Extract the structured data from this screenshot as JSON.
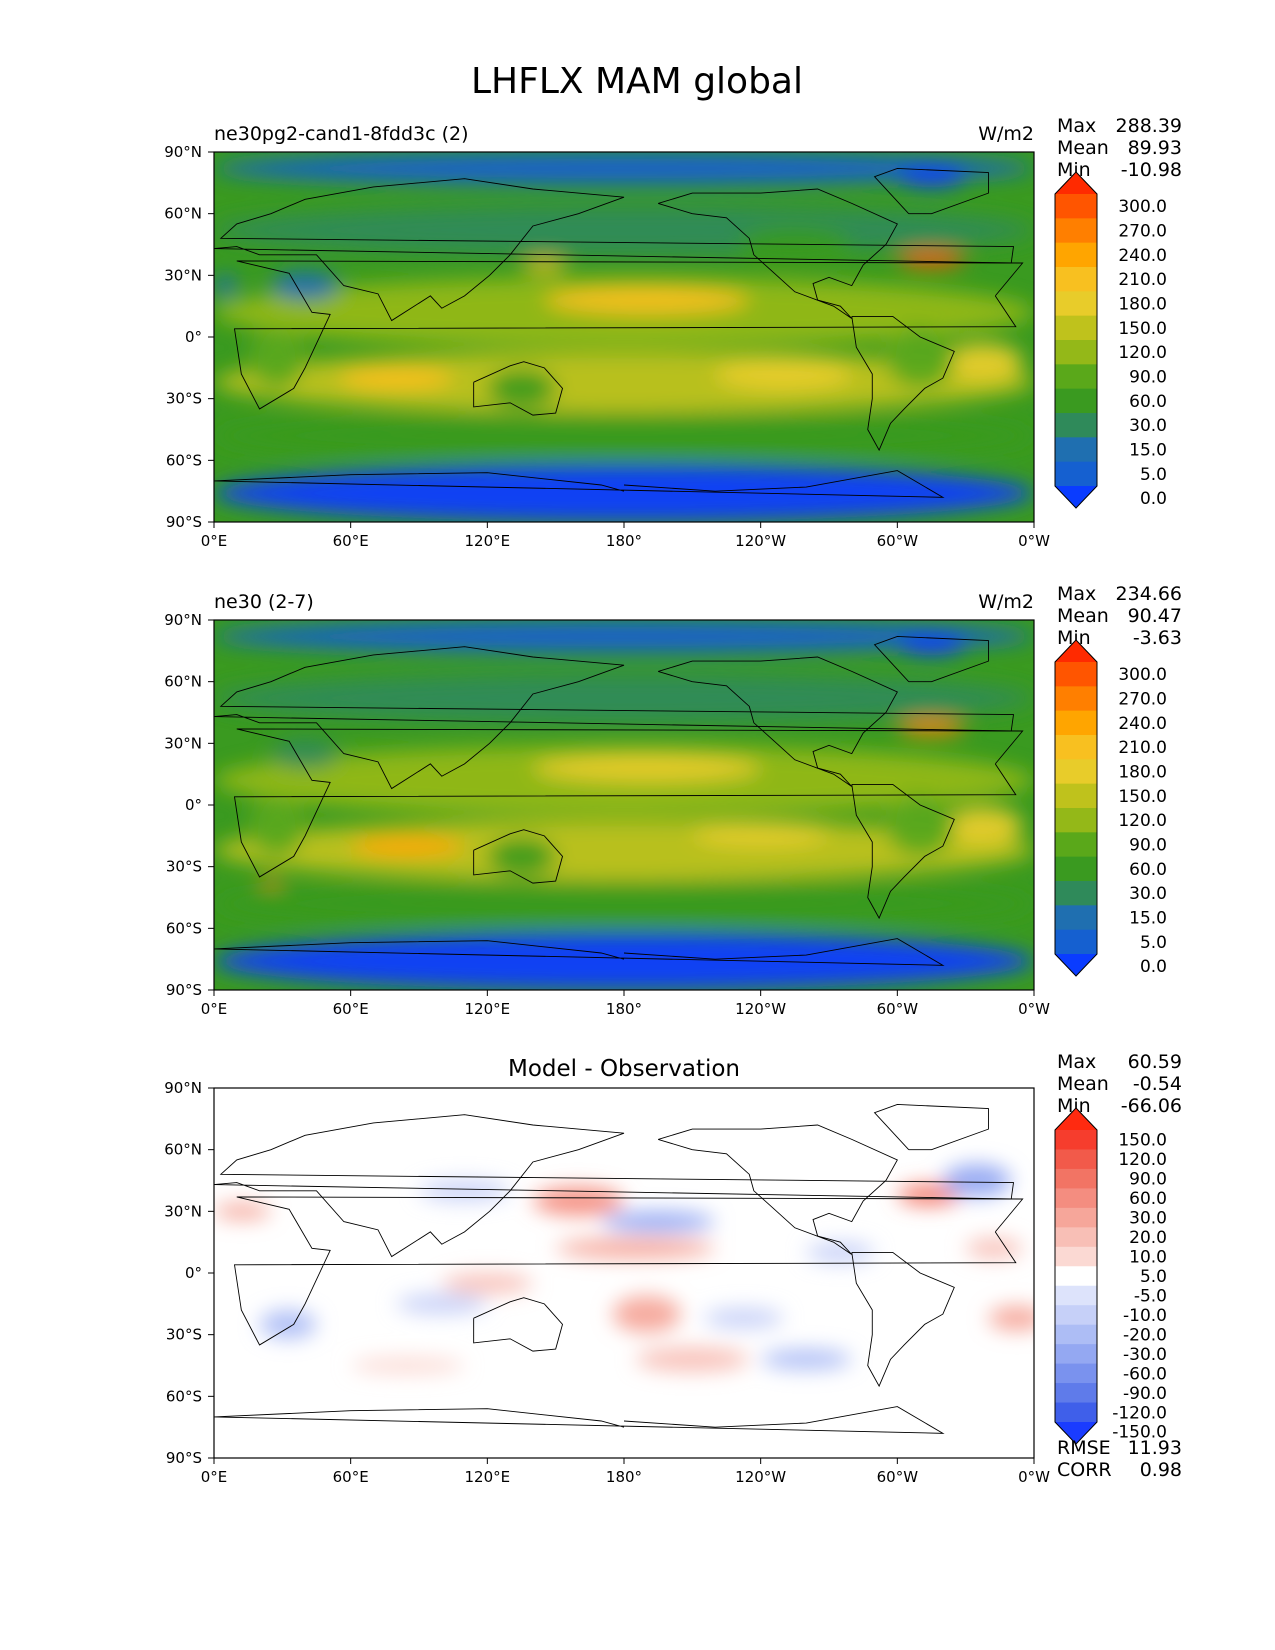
{
  "figure": {
    "title": "LHFLX MAM global"
  },
  "axes_ticks": {
    "x": [
      "0°E",
      "60°E",
      "120°E",
      "180°",
      "120°W",
      "60°W",
      "0°W"
    ],
    "y": [
      "90°N",
      "60°N",
      "30°N",
      "0°",
      "30°S",
      "60°S",
      "90°S"
    ]
  },
  "chart_data": [
    {
      "type": "heatmap",
      "title": "ne30pg2-cand1-8fdd3c (2)",
      "units": "W/m2",
      "stats": {
        "max_label": "Max",
        "max": "288.39",
        "mean_label": "Mean",
        "mean": "89.93",
        "min_label": "Min",
        "min": "-10.98"
      },
      "colorbar_levels": [
        "300.0",
        "270.0",
        "240.0",
        "210.0",
        "180.0",
        "150.0",
        "120.0",
        "90.0",
        "60.0",
        "30.0",
        "15.0",
        "5.0",
        "0.0"
      ],
      "colorbar_colors": [
        "#ff2a00",
        "#ff5500",
        "#ff7f00",
        "#ffa500",
        "#f8c020",
        "#e8cc2a",
        "#bfc21c",
        "#94b818",
        "#5aa81a",
        "#3a9a20",
        "#2f8a5a",
        "#1f6fb0",
        "#1560d0",
        "#0a3cff"
      ],
      "xlim": [
        0,
        360
      ],
      "ylim": [
        -90,
        90
      ],
      "map_blobs": [
        {
          "x": 0,
          "y": -76,
          "w": 360,
          "h": 28,
          "c": 13
        },
        {
          "x": 0,
          "y": 82,
          "w": 360,
          "h": 16,
          "c": 12
        },
        {
          "x": 300,
          "y": 78,
          "w": 30,
          "h": 10,
          "c": 13
        },
        {
          "x": 0,
          "y": -48,
          "w": 360,
          "h": 22,
          "c": 9
        },
        {
          "x": 0,
          "y": 52,
          "w": 360,
          "h": 24,
          "c": 10
        },
        {
          "x": 0,
          "y": 12,
          "w": 360,
          "h": 34,
          "c": 7
        },
        {
          "x": 0,
          "y": -22,
          "w": 360,
          "h": 30,
          "c": 6
        },
        {
          "x": 145,
          "y": 18,
          "w": 90,
          "h": 14,
          "c": 4
        },
        {
          "x": 220,
          "y": -18,
          "w": 60,
          "h": 16,
          "c": 5
        },
        {
          "x": 55,
          "y": -20,
          "w": 50,
          "h": 12,
          "c": 4
        },
        {
          "x": 300,
          "y": 38,
          "w": 30,
          "h": 8,
          "c": 1
        },
        {
          "x": 135,
          "y": 35,
          "w": 20,
          "h": 6,
          "c": 4
        },
        {
          "x": 320,
          "y": -12,
          "w": 35,
          "h": 18,
          "c": 5
        },
        {
          "x": 25,
          "y": 25,
          "w": 30,
          "h": 14,
          "c": 11
        },
        {
          "x": 0,
          "y": 25,
          "w": 10,
          "h": 10,
          "c": 11
        },
        {
          "x": 120,
          "y": -25,
          "w": 30,
          "h": 18,
          "c": 9
        },
        {
          "x": 15,
          "y": -10,
          "w": 25,
          "h": 30,
          "c": 8
        },
        {
          "x": 295,
          "y": -10,
          "w": 30,
          "h": 30,
          "c": 8
        },
        {
          "x": 230,
          "y": 45,
          "w": 50,
          "h": 18,
          "c": 9
        }
      ]
    },
    {
      "type": "heatmap",
      "title": "ne30 (2-7)",
      "units": "W/m2",
      "stats": {
        "max_label": "Max",
        "max": "234.66",
        "mean_label": "Mean",
        "mean": "90.47",
        "min_label": "Min",
        "min": "-3.63"
      },
      "colorbar_levels": [
        "300.0",
        "270.0",
        "240.0",
        "210.0",
        "180.0",
        "150.0",
        "120.0",
        "90.0",
        "60.0",
        "30.0",
        "15.0",
        "5.0",
        "0.0"
      ],
      "colorbar_colors": [
        "#ff2a00",
        "#ff5500",
        "#ff7f00",
        "#ffa500",
        "#f8c020",
        "#e8cc2a",
        "#bfc21c",
        "#94b818",
        "#5aa81a",
        "#3a9a20",
        "#2f8a5a",
        "#1f6fb0",
        "#1560d0",
        "#0a3cff"
      ],
      "xlim": [
        0,
        360
      ],
      "ylim": [
        -90,
        90
      ],
      "map_blobs": [
        {
          "x": 0,
          "y": -76,
          "w": 360,
          "h": 28,
          "c": 13
        },
        {
          "x": 0,
          "y": 82,
          "w": 360,
          "h": 16,
          "c": 12
        },
        {
          "x": 300,
          "y": 78,
          "w": 30,
          "h": 10,
          "c": 13
        },
        {
          "x": 0,
          "y": -48,
          "w": 360,
          "h": 22,
          "c": 9
        },
        {
          "x": 0,
          "y": 52,
          "w": 360,
          "h": 24,
          "c": 10
        },
        {
          "x": 0,
          "y": 12,
          "w": 360,
          "h": 34,
          "c": 7
        },
        {
          "x": 0,
          "y": -22,
          "w": 360,
          "h": 30,
          "c": 6
        },
        {
          "x": 140,
          "y": 18,
          "w": 100,
          "h": 14,
          "c": 5
        },
        {
          "x": 60,
          "y": -20,
          "w": 50,
          "h": 10,
          "c": 3
        },
        {
          "x": 210,
          "y": -14,
          "w": 60,
          "h": 12,
          "c": 5
        },
        {
          "x": 300,
          "y": 38,
          "w": 30,
          "h": 8,
          "c": 2
        },
        {
          "x": 320,
          "y": -10,
          "w": 35,
          "h": 18,
          "c": 5
        },
        {
          "x": 25,
          "y": 25,
          "w": 30,
          "h": 14,
          "c": 10
        },
        {
          "x": 120,
          "y": -25,
          "w": 30,
          "h": 18,
          "c": 9
        },
        {
          "x": 15,
          "y": -10,
          "w": 25,
          "h": 30,
          "c": 8
        },
        {
          "x": 295,
          "y": -10,
          "w": 30,
          "h": 30,
          "c": 8
        },
        {
          "x": 20,
          "y": -37,
          "w": 10,
          "h": 4,
          "c": 2
        }
      ]
    },
    {
      "type": "heatmap",
      "title": "Model - Observation",
      "units": "",
      "stats": {
        "max_label": "Max",
        "max": "60.59",
        "mean_label": "Mean",
        "mean": "-0.54",
        "min_label": "Min",
        "min": "-66.06"
      },
      "colorbar_levels": [
        "150.0",
        "120.0",
        "90.0",
        "60.0",
        "30.0",
        "20.0",
        "10.0",
        "5.0",
        "-5.0",
        "-10.0",
        "-20.0",
        "-30.0",
        "-60.0",
        "-90.0",
        "-120.0",
        "-150.0"
      ],
      "colorbar_colors": [
        "#ff2a10",
        "#f63d2d",
        "#f25a4a",
        "#f27464",
        "#f48d80",
        "#f6a69a",
        "#f8bfb6",
        "#fbd9d3",
        "#ffffff",
        "#dde3fb",
        "#c6d0f8",
        "#adbdf5",
        "#94a8f2",
        "#7a92ee",
        "#5f7bea",
        "#3f5fea",
        "#1a3cff"
      ],
      "xlim": [
        0,
        360
      ],
      "ylim": [
        -90,
        90
      ],
      "metrics": {
        "rmse_label": "RMSE",
        "rmse": "11.93",
        "corr_label": "CORR",
        "corr": "0.98"
      },
      "map_blobs": [
        {
          "x": 140,
          "y": 35,
          "w": 40,
          "h": 14,
          "c": 4
        },
        {
          "x": 170,
          "y": 25,
          "w": 50,
          "h": 10,
          "c": 12
        },
        {
          "x": 150,
          "y": 12,
          "w": 70,
          "h": 10,
          "c": 5
        },
        {
          "x": 300,
          "y": 38,
          "w": 28,
          "h": 10,
          "c": 3
        },
        {
          "x": 320,
          "y": 45,
          "w": 30,
          "h": 16,
          "c": 12
        },
        {
          "x": 175,
          "y": -20,
          "w": 30,
          "h": 18,
          "c": 5
        },
        {
          "x": 185,
          "y": -42,
          "w": 50,
          "h": 12,
          "c": 6
        },
        {
          "x": 215,
          "y": -22,
          "w": 35,
          "h": 10,
          "c": 10
        },
        {
          "x": 20,
          "y": -25,
          "w": 25,
          "h": 14,
          "c": 11
        },
        {
          "x": 80,
          "y": -15,
          "w": 40,
          "h": 10,
          "c": 10
        },
        {
          "x": 0,
          "y": 30,
          "w": 25,
          "h": 8,
          "c": 5
        },
        {
          "x": 100,
          "y": -5,
          "w": 40,
          "h": 10,
          "c": 6
        },
        {
          "x": 340,
          "y": -22,
          "w": 25,
          "h": 12,
          "c": 5
        },
        {
          "x": 330,
          "y": 12,
          "w": 25,
          "h": 10,
          "c": 6
        },
        {
          "x": 240,
          "y": -42,
          "w": 40,
          "h": 10,
          "c": 11
        },
        {
          "x": 60,
          "y": -45,
          "w": 50,
          "h": 8,
          "c": 7
        },
        {
          "x": 260,
          "y": 10,
          "w": 30,
          "h": 10,
          "c": 10
        },
        {
          "x": 90,
          "y": 40,
          "w": 40,
          "h": 10,
          "c": 10
        }
      ]
    }
  ]
}
